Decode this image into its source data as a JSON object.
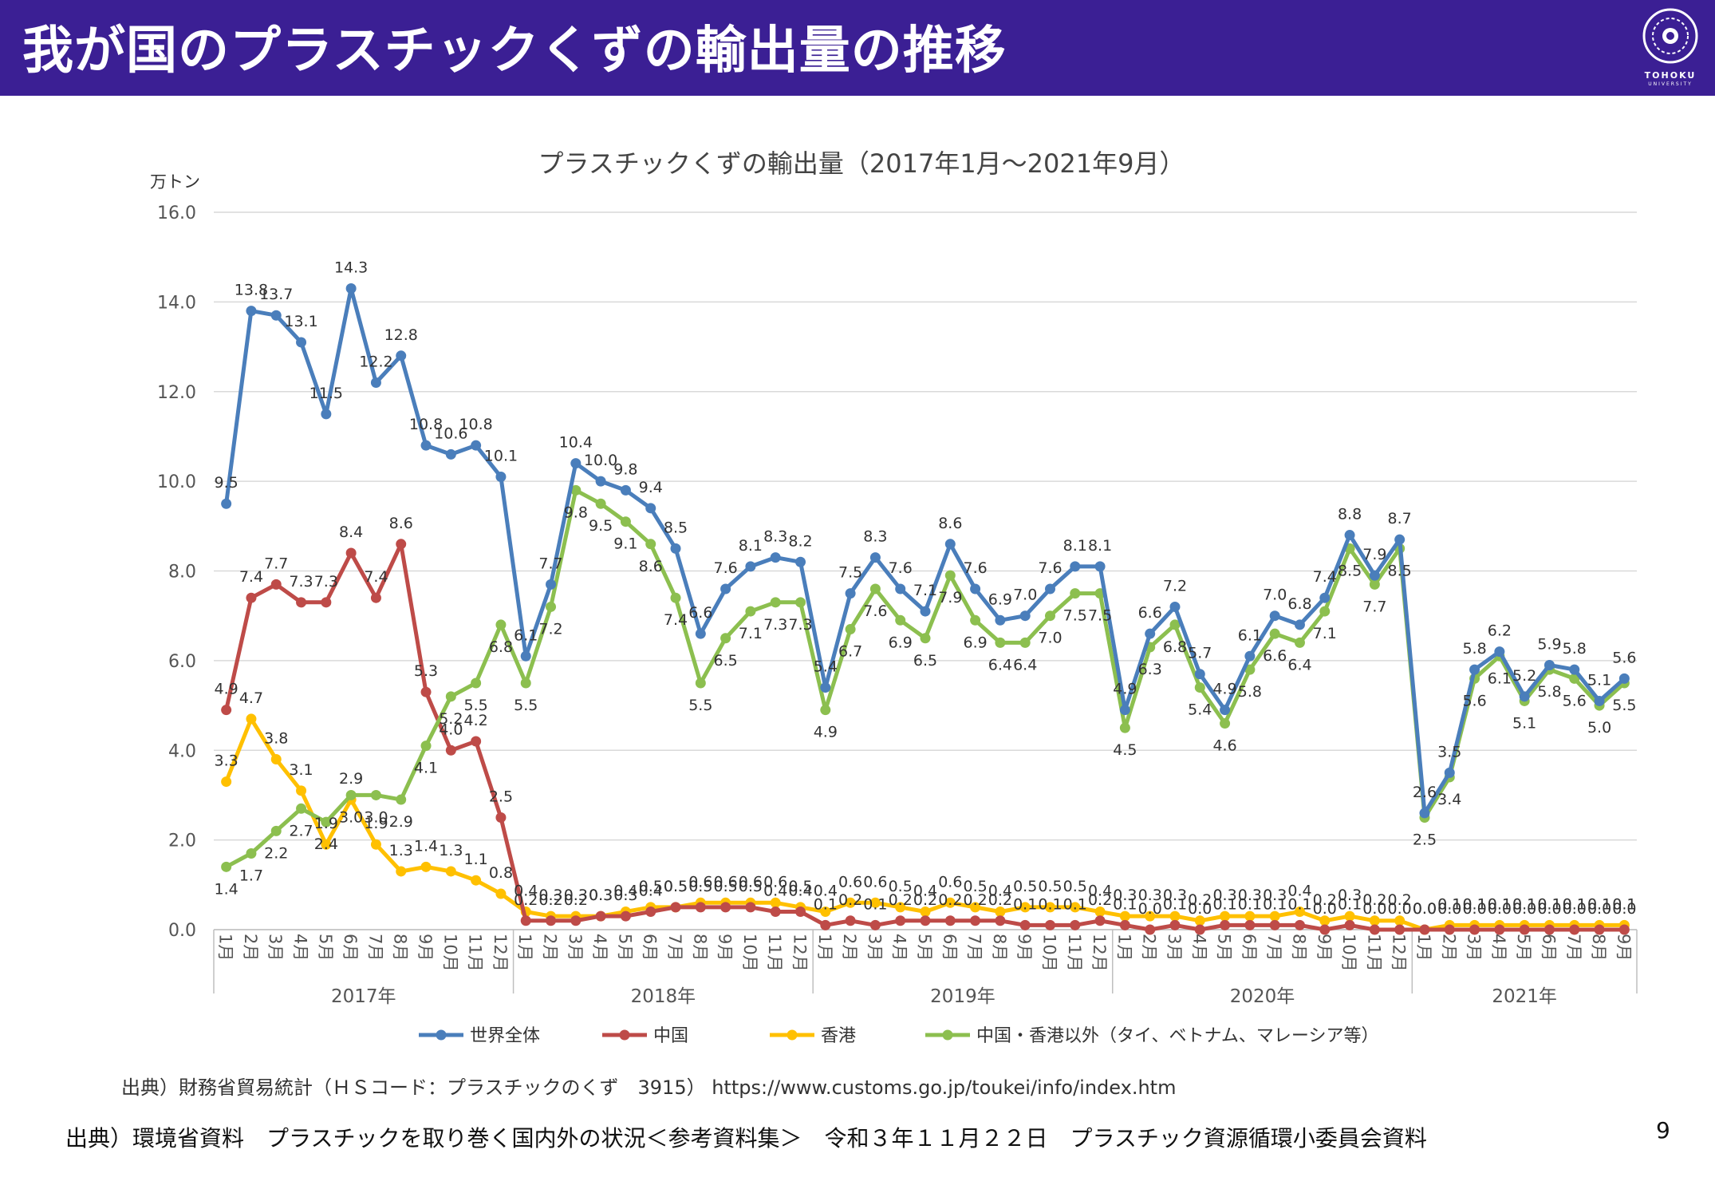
{
  "slide": {
    "title": "我が国のプラスチックくずの輸出量の推移",
    "logo_text": "TOHOKU",
    "logo_subtext": "UNIVERSITY",
    "source_note": "出典）財務省貿易統計（ＨＳコード：プラスチックのくず　3915）  https://www.customs.go.jp/toukei/info/index.htm",
    "footer_citation": "出典）環境省資料　プラスチックを取り巻く国内外の状況＜参考資料集＞　令和３年１１月２２日　プラスチック資源循環小委員会資料",
    "page_number": "9"
  },
  "colors": {
    "header_bg": "#3b1f94",
    "world": "#4a7ebb",
    "china": "#be4b48",
    "hongkong": "#ffc000",
    "others": "#8cbf4f"
  },
  "chart_data": {
    "type": "line",
    "title": "プラスチックくずの輸出量（2017年1月～2021年9月）",
    "ylabel": "万トン",
    "ylim": [
      0,
      16
    ],
    "yticks": [
      "0.0",
      "2.0",
      "4.0",
      "6.0",
      "8.0",
      "10.0",
      "12.0",
      "14.0",
      "16.0"
    ],
    "grid": true,
    "legend_position": "bottom",
    "months": [
      "1月",
      "2月",
      "3月",
      "4月",
      "5月",
      "6月",
      "7月",
      "8月",
      "9月",
      "10月",
      "11月",
      "12月",
      "1月",
      "2月",
      "3月",
      "4月",
      "5月",
      "6月",
      "7月",
      "8月",
      "9月",
      "10月",
      "11月",
      "12月",
      "1月",
      "2月",
      "3月",
      "4月",
      "5月",
      "6月",
      "7月",
      "8月",
      "9月",
      "10月",
      "11月",
      "12月",
      "1月",
      "2月",
      "3月",
      "4月",
      "5月",
      "6月",
      "7月",
      "8月",
      "9月",
      "10月",
      "11月",
      "12月",
      "1月",
      "2月",
      "3月",
      "4月",
      "5月",
      "6月",
      "7月",
      "8月",
      "9月"
    ],
    "years": [
      {
        "label": "2017年",
        "count": 12
      },
      {
        "label": "2018年",
        "count": 12
      },
      {
        "label": "2019年",
        "count": 12
      },
      {
        "label": "2020年",
        "count": 12
      },
      {
        "label": "2021年",
        "count": 9
      }
    ],
    "series": [
      {
        "name": "世界全体",
        "color": "#4a7ebb",
        "values": [
          9.5,
          13.8,
          13.7,
          13.1,
          11.5,
          14.3,
          12.2,
          12.8,
          10.8,
          10.6,
          10.8,
          10.1,
          6.1,
          7.7,
          10.4,
          10.0,
          9.8,
          9.4,
          8.5,
          6.6,
          7.6,
          8.1,
          8.3,
          8.2,
          5.4,
          7.5,
          8.3,
          7.6,
          7.1,
          8.6,
          7.6,
          6.9,
          7.0,
          7.6,
          8.1,
          8.1,
          4.9,
          6.6,
          7.2,
          5.7,
          4.9,
          6.1,
          7.0,
          6.8,
          7.4,
          8.8,
          7.9,
          8.7,
          2.6,
          3.5,
          5.8,
          6.2,
          5.2,
          5.9,
          5.8,
          5.1,
          5.6
        ]
      },
      {
        "name": "中国",
        "color": "#be4b48",
        "values": [
          4.9,
          7.4,
          7.7,
          7.3,
          7.3,
          8.4,
          7.4,
          8.6,
          5.3,
          4.0,
          4.2,
          2.5,
          0.2,
          0.2,
          0.2,
          0.3,
          0.3,
          0.4,
          0.5,
          0.5,
          0.5,
          0.5,
          0.4,
          0.4,
          0.1,
          0.2,
          0.1,
          0.2,
          0.2,
          0.2,
          0.2,
          0.2,
          0.1,
          0.1,
          0.1,
          0.2,
          0.1,
          0.0,
          0.1,
          0.0,
          0.1,
          0.1,
          0.1,
          0.1,
          0.0,
          0.1,
          0.0,
          0.0,
          0.0,
          0.0,
          0.0,
          0.0,
          0.0,
          0.0,
          0.0,
          0.0,
          0.0
        ]
      },
      {
        "name": "香港",
        "color": "#ffc000",
        "values": [
          3.3,
          4.7,
          3.8,
          3.1,
          1.9,
          2.9,
          1.9,
          1.3,
          1.4,
          1.3,
          1.1,
          0.8,
          0.4,
          0.3,
          0.3,
          0.3,
          0.4,
          0.5,
          0.5,
          0.6,
          0.6,
          0.6,
          0.6,
          0.5,
          0.4,
          0.6,
          0.6,
          0.5,
          0.4,
          0.6,
          0.5,
          0.4,
          0.5,
          0.5,
          0.5,
          0.4,
          0.3,
          0.3,
          0.3,
          0.2,
          0.3,
          0.3,
          0.3,
          0.4,
          0.2,
          0.3,
          0.2,
          0.2,
          0.0,
          0.1,
          0.1,
          0.1,
          0.1,
          0.1,
          0.1,
          0.1,
          0.1
        ]
      },
      {
        "name": "中国・香港以外（タイ、ベトナム、マレーシア等）",
        "color": "#8cbf4f",
        "values": [
          1.4,
          1.7,
          2.2,
          2.7,
          2.4,
          3.0,
          3.0,
          2.9,
          4.1,
          5.2,
          5.5,
          6.8,
          5.5,
          7.2,
          9.8,
          9.5,
          9.1,
          8.6,
          7.4,
          5.5,
          6.5,
          7.1,
          7.3,
          7.3,
          4.9,
          6.7,
          7.6,
          6.9,
          6.5,
          7.9,
          6.9,
          6.4,
          6.4,
          7.0,
          7.5,
          7.5,
          4.5,
          6.3,
          6.8,
          5.4,
          4.6,
          5.8,
          6.6,
          6.4,
          7.1,
          8.5,
          7.7,
          8.5,
          2.5,
          3.4,
          5.6,
          6.1,
          5.1,
          5.8,
          5.6,
          5.0,
          5.5
        ]
      }
    ]
  }
}
